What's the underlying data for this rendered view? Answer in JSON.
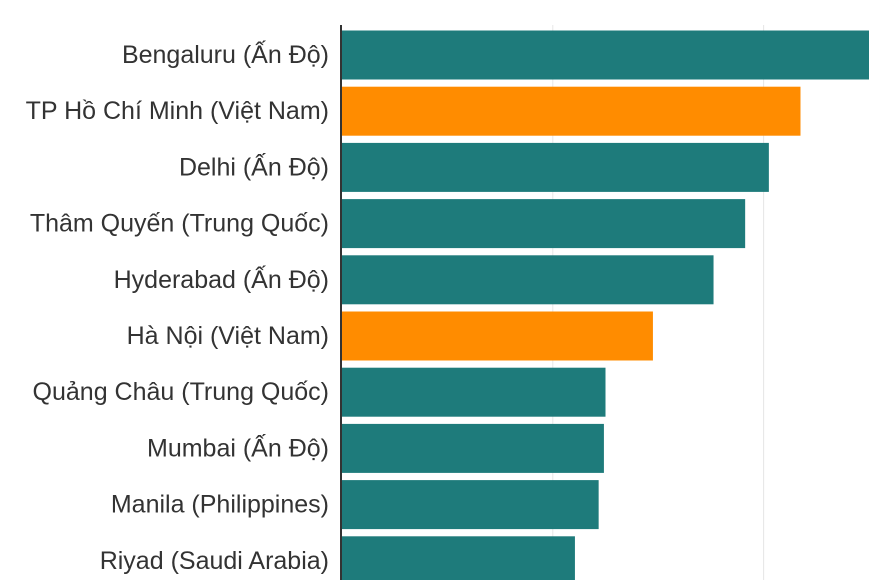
{
  "chart_data": {
    "type": "bar",
    "orientation": "horizontal",
    "categories": [
      "Bengaluru (Ấn Độ)",
      "TP Hồ Chí Minh (Việt Nam)",
      "Delhi (Ấn Độ)",
      "Thâm Quyến (Trung Quốc)",
      "Hyderabad (Ấn Độ)",
      "Hà Nội (Việt Nam)",
      "Quảng Châu (Trung Quốc)",
      "Mumbai (Ấn Độ)",
      "Manila (Philippines)",
      "Riyad (Saudi Arabia)"
    ],
    "values": [
      100,
      87,
      81,
      76.5,
      70.5,
      59,
      50,
      49.7,
      48.7,
      44.2
    ],
    "xlim": [
      0,
      100
    ],
    "grid": true,
    "colors": {
      "default": "#1e7b7b",
      "highlight": "#ff8c00"
    },
    "highlight_indices": [
      1,
      5
    ]
  }
}
